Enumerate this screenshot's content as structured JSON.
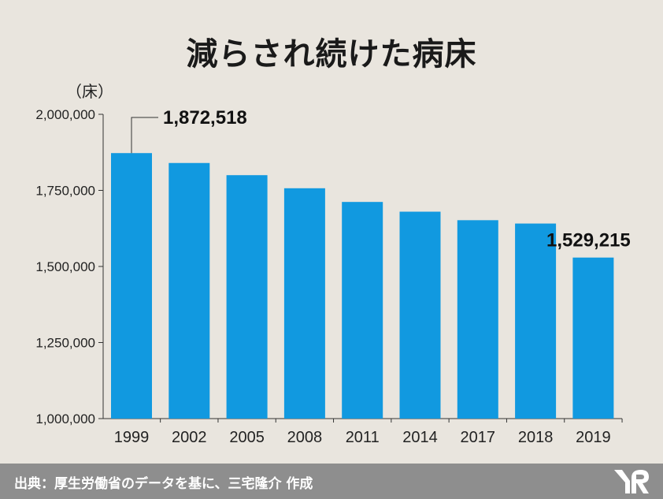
{
  "title": "減らされ続けた病床",
  "unit_label": "（床）",
  "source": "出典：厚生労働省のデータを基に、三宅隆介 作成",
  "colors": {
    "bar": "#1199e0",
    "background": "#e9e5de",
    "footer": "#8e8e8e"
  },
  "chart_data": {
    "type": "bar",
    "categories": [
      "1999",
      "2002",
      "2005",
      "2008",
      "2011",
      "2014",
      "2017",
      "2018",
      "2019"
    ],
    "values": [
      1872518,
      1840000,
      1800000,
      1757000,
      1712000,
      1680000,
      1652000,
      1641000,
      1529215
    ],
    "ylim": [
      1000000,
      2000000
    ],
    "yticks": [
      "1,000,000",
      "1,250,000",
      "1,500,000",
      "1,750,000",
      "2,000,000"
    ],
    "ytick_values": [
      1000000,
      1250000,
      1500000,
      1750000,
      2000000
    ],
    "annotations": [
      {
        "category": "1999",
        "text": "1,872,518"
      },
      {
        "category": "2019",
        "text": "1,529,215"
      }
    ],
    "grid": false
  }
}
